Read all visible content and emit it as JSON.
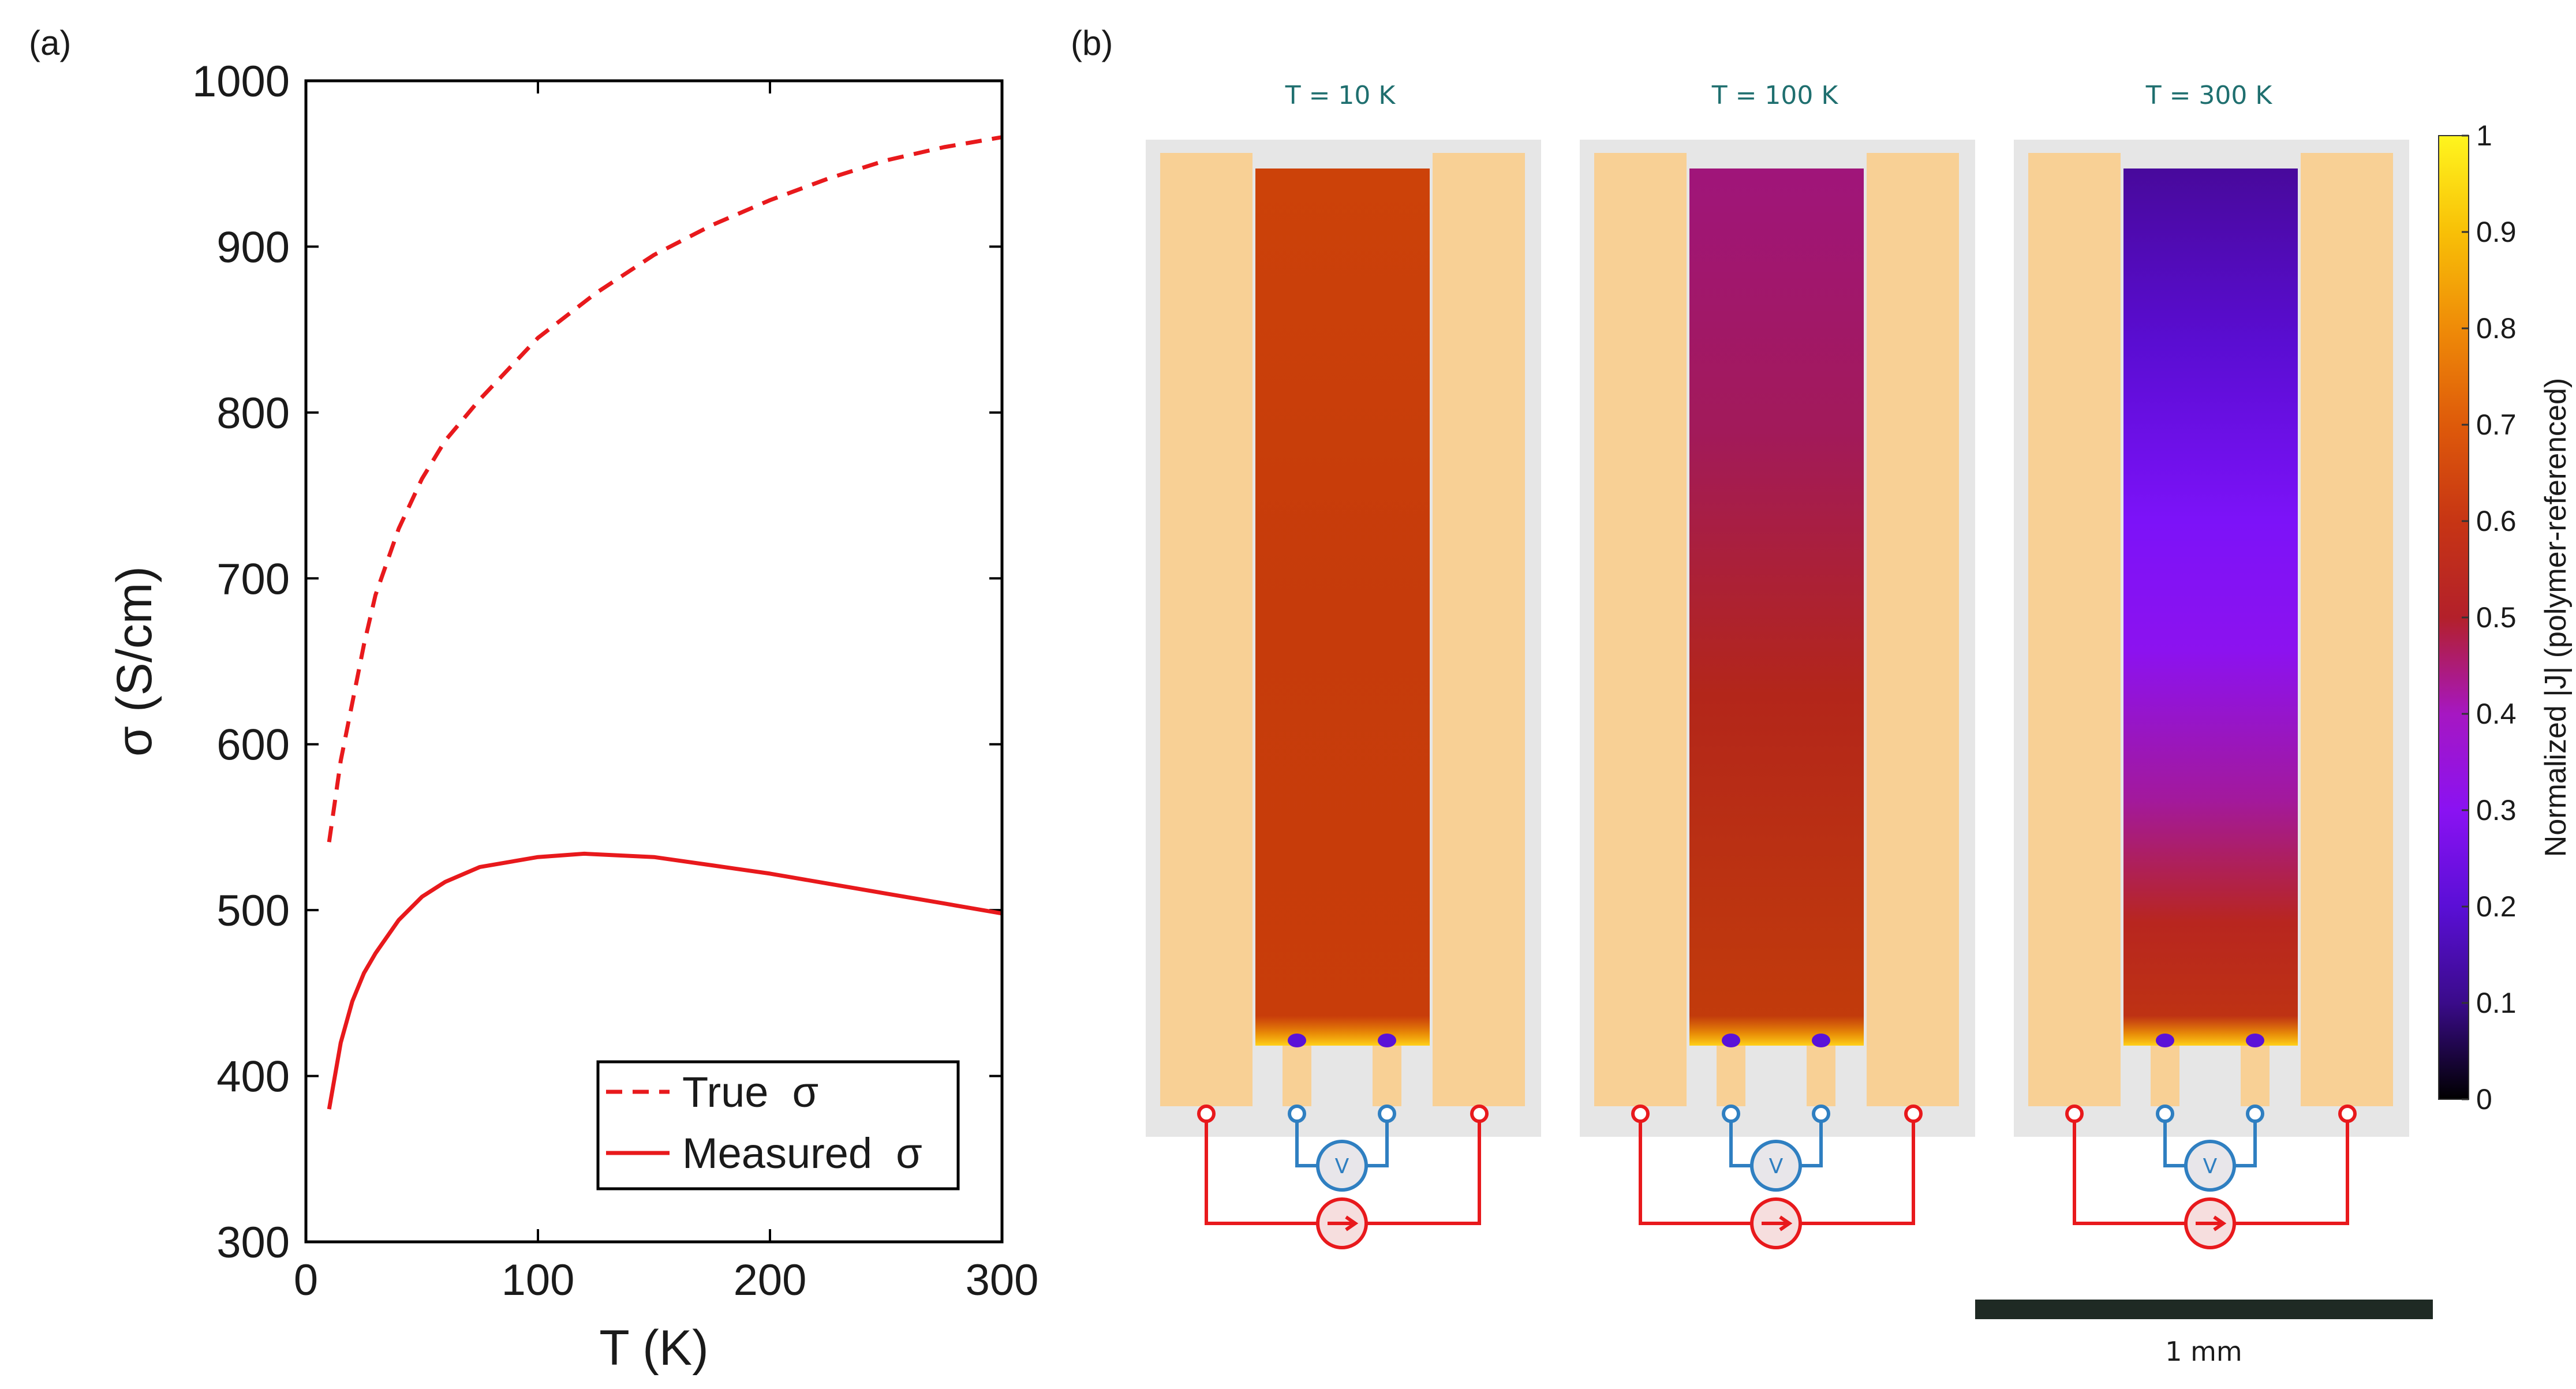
{
  "figure": {
    "panel_a_label": "(a)",
    "panel_b_label": "(b)"
  },
  "chart_data": [
    {
      "type": "line",
      "xlabel": "T (K)",
      "ylabel": "σ  (S/cm)",
      "xlim": [
        0,
        300
      ],
      "ylim": [
        300,
        1000
      ],
      "xticks": [
        0,
        100,
        200,
        300
      ],
      "yticks": [
        300,
        400,
        500,
        600,
        700,
        800,
        900,
        1000
      ],
      "grid": false,
      "legend_position": "bottom-right",
      "series": [
        {
          "name": "True  σ",
          "style": "dashed",
          "color": "#e8191c",
          "x": [
            10,
            15,
            20,
            25,
            30,
            40,
            50,
            60,
            75,
            100,
            125,
            150,
            175,
            200,
            225,
            250,
            275,
            300
          ],
          "y": [
            541,
            590,
            625,
            660,
            690,
            730,
            760,
            783,
            808,
            845,
            872,
            895,
            913,
            928,
            941,
            952,
            960,
            966
          ]
        },
        {
          "name": "Measured  σ",
          "style": "solid",
          "color": "#e8191c",
          "x": [
            10,
            15,
            20,
            25,
            30,
            40,
            50,
            60,
            75,
            100,
            120,
            150,
            175,
            200,
            225,
            250,
            275,
            300
          ],
          "y": [
            380,
            420,
            445,
            462,
            474,
            494,
            508,
            517,
            526,
            532,
            534,
            532,
            527,
            522,
            516,
            510,
            504,
            498
          ]
        }
      ]
    },
    {
      "type": "heatmap",
      "panels": [
        {
          "title": "T = 10 K",
          "fill_level": 0.63
        },
        {
          "title": "T = 100 K",
          "fill_level": 0.4
        },
        {
          "title": "T = 300 K",
          "fill_level": 0.13
        }
      ],
      "colorbar": {
        "label": "Normalized |J| (polymer-referenced)",
        "range": [
          0,
          1
        ],
        "ticks": [
          "0",
          "0.1",
          "0.2",
          "0.3",
          "0.4",
          "0.5",
          "0.6",
          "0.7",
          "0.8",
          "0.9",
          "1"
        ]
      },
      "scalebar_label": "1 mm",
      "voltmeter_symbol": "V",
      "colors": {
        "electrode": "#f8d095",
        "substrate": "#e6e6e6",
        "current_wire": "#e8191c",
        "voltage_wire": "#2f7fc1",
        "scalebar": "#1f2a24"
      }
    }
  ]
}
